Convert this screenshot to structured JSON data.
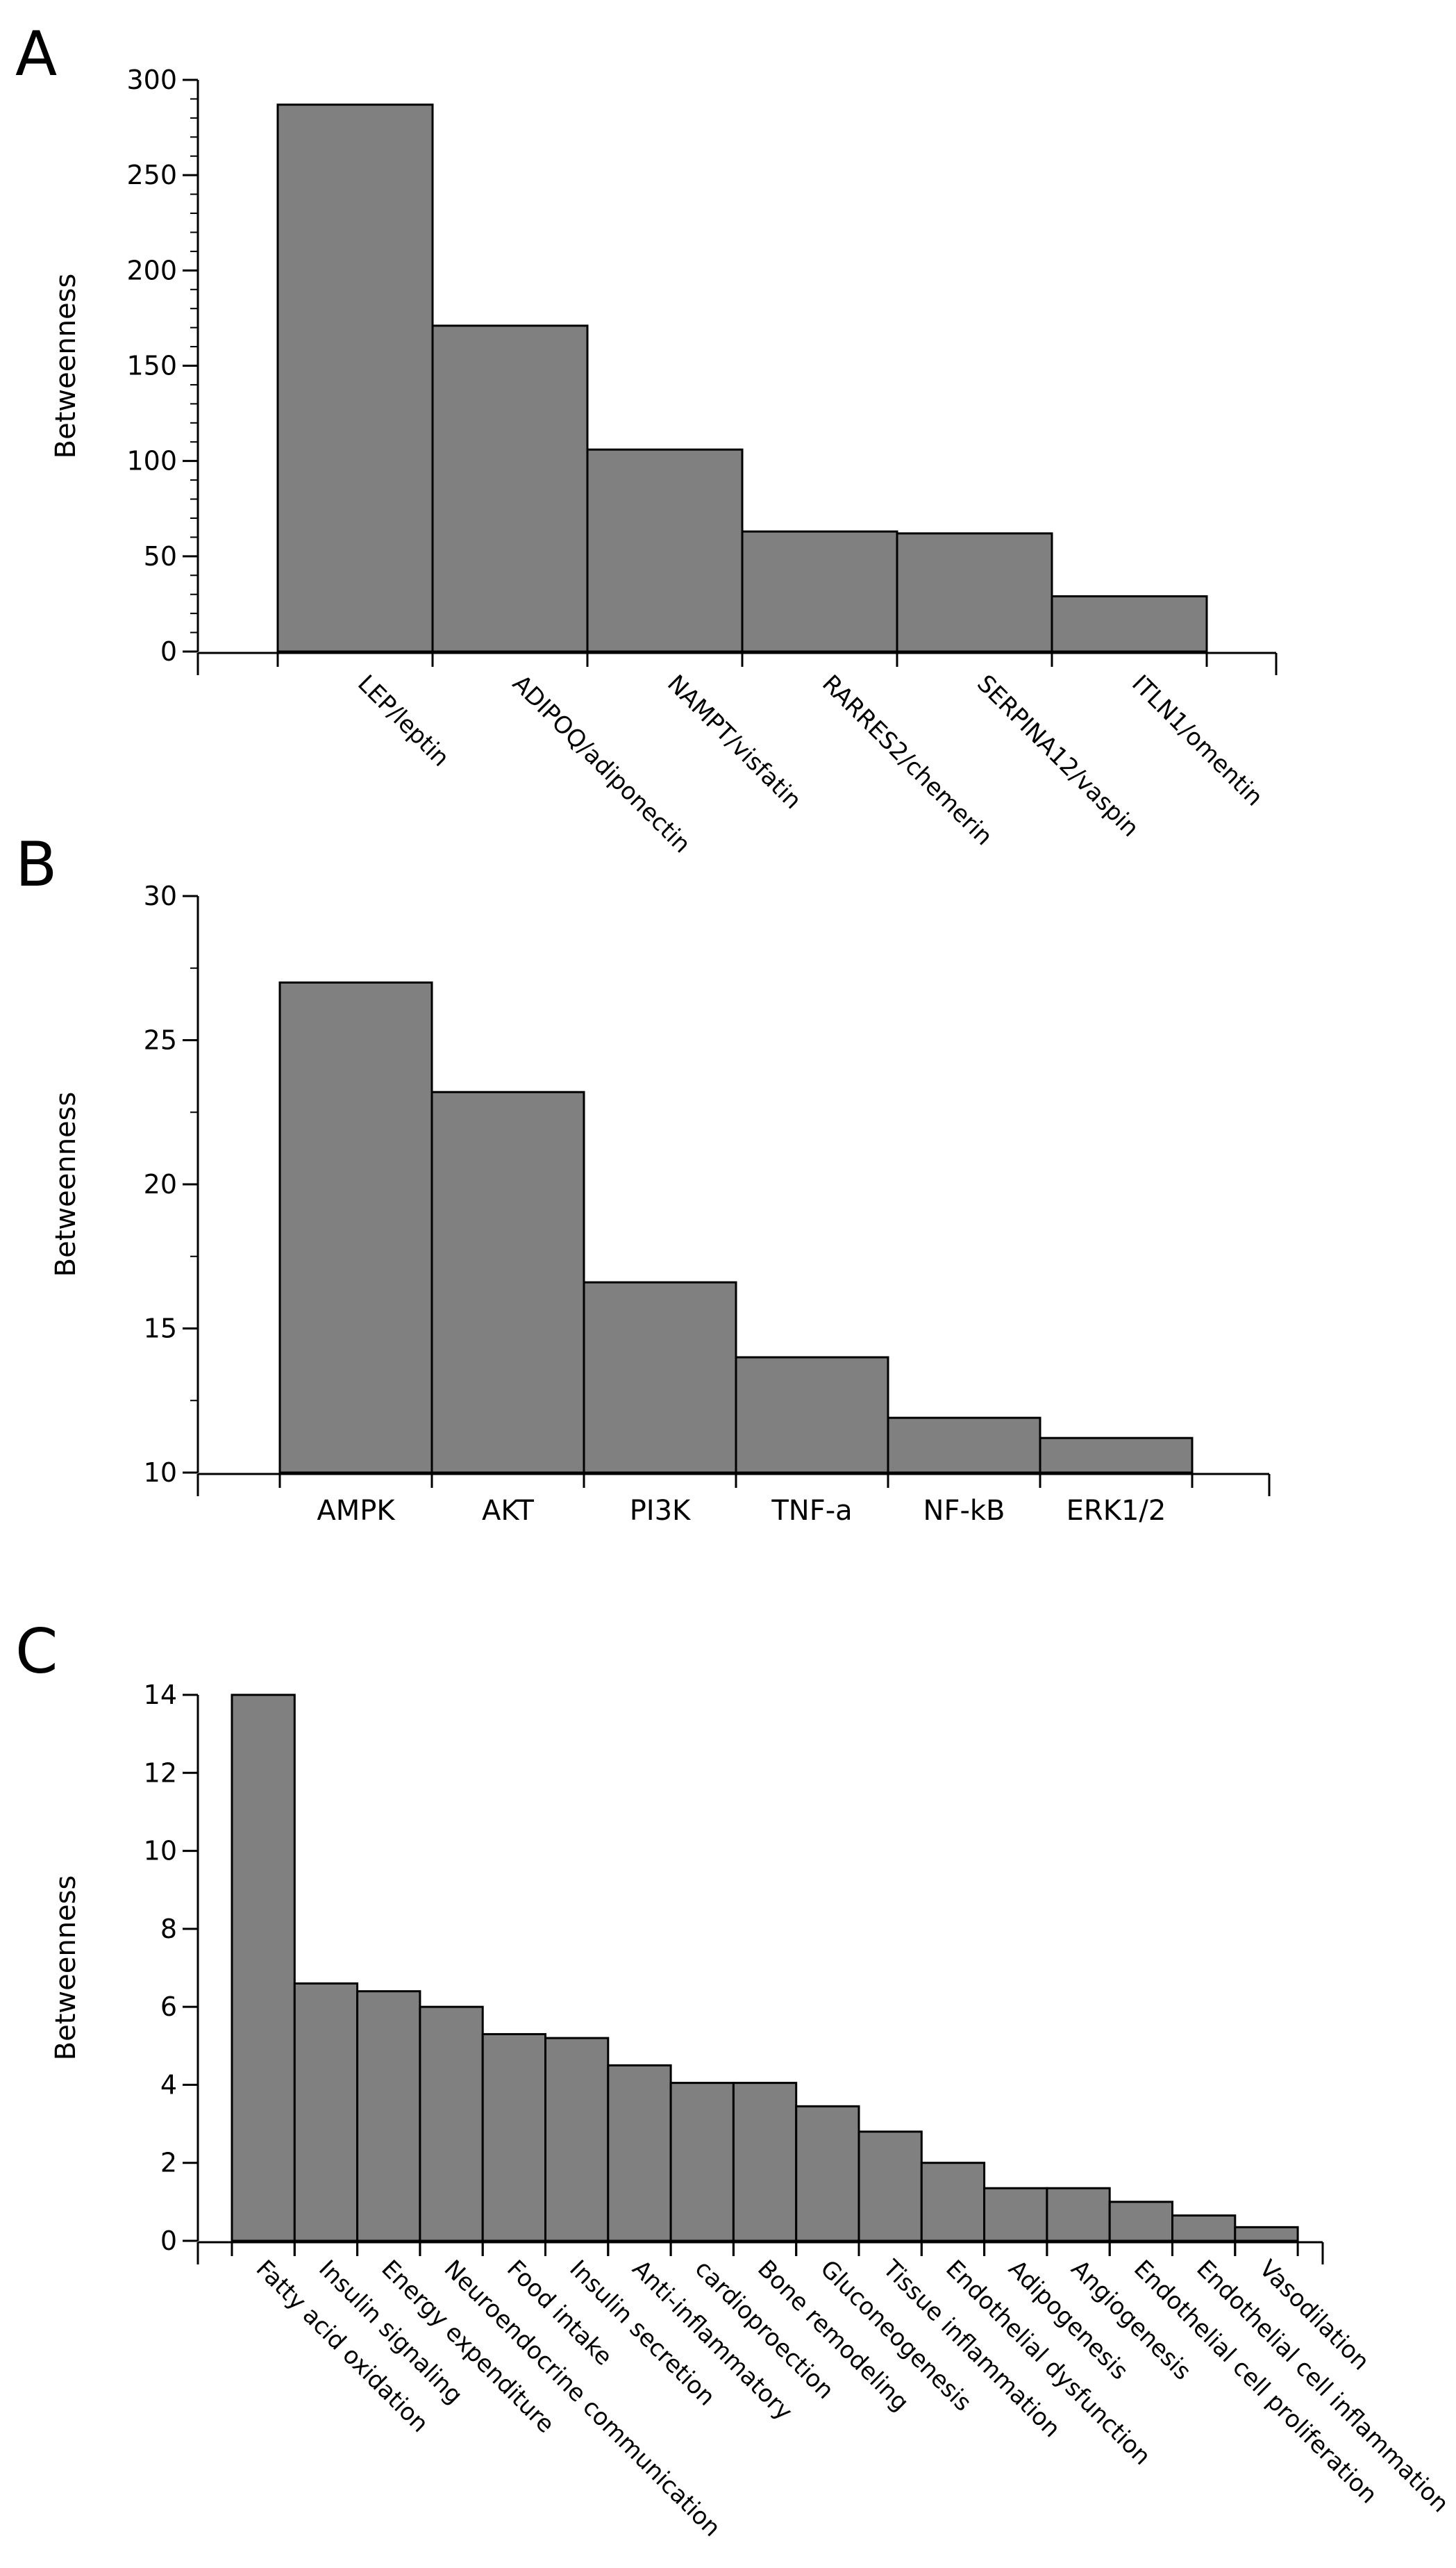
{
  "chart_data": [
    {
      "type": "bar",
      "panel": "A",
      "ylabel": "Betweenness",
      "ylim": [
        0,
        300
      ],
      "yticks": [
        0,
        50,
        100,
        150,
        200,
        250,
        300
      ],
      "categories": [
        "LEP/leptin",
        "ADIPOQ/adiponectin",
        "NAMPT/visfatin",
        "RARRES2/chemerin",
        "SERPINA12/vaspin",
        "ITLN1/omentin"
      ],
      "values": [
        287,
        171,
        106,
        63,
        62,
        29
      ]
    },
    {
      "type": "bar",
      "panel": "B",
      "ylabel": "Betweenness",
      "ylim": [
        10,
        30
      ],
      "yticks": [
        10,
        15,
        20,
        25,
        30
      ],
      "categories": [
        "AMPK",
        "AKT",
        "PI3K",
        "TNF-a",
        "NF-kB",
        "ERK1/2"
      ],
      "values": [
        27,
        23.2,
        16.6,
        14,
        11.9,
        11.2
      ]
    },
    {
      "type": "bar",
      "panel": "C",
      "ylabel": "Betweenness",
      "ylim": [
        0,
        14
      ],
      "yticks": [
        0,
        2,
        4,
        6,
        8,
        10,
        12,
        14
      ],
      "categories": [
        "Fatty acid oxidation",
        "Insulin signaling",
        "Energy expenditure",
        "Neuroendocrine communication",
        "Food intake",
        "Insulin secretion",
        "Anti-inflammatory",
        "cardioproection",
        "Bone remodeling",
        "Gluconeogenesis",
        "Tissue inflammation",
        "Endothelial dysfunction",
        "Adipogenesis",
        "Angiogenesis",
        "Endothelial cell proliferation",
        "Endothelial cell inflammation",
        "Vasodilation"
      ],
      "values": [
        14,
        6.6,
        6.4,
        6,
        5.3,
        5.2,
        4.5,
        4.05,
        4.05,
        3.45,
        2.8,
        2,
        1.35,
        1.35,
        1,
        0.65,
        0.35
      ]
    }
  ]
}
